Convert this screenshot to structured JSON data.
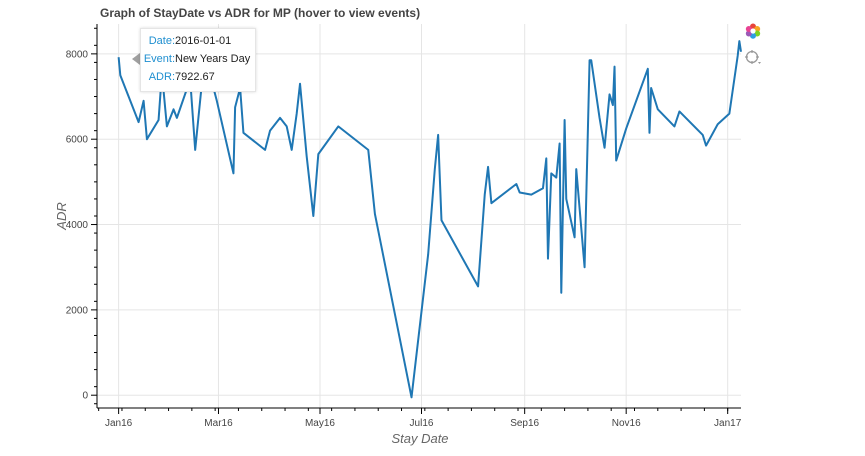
{
  "chart_data": {
    "type": "line",
    "title": "Graph of StayDate vs ADR for MP (hover to view events)",
    "xlabel": "Stay Date",
    "ylabel": "ADR",
    "x_ticks": [
      "Jan16",
      "Mar16",
      "May16",
      "Jul16",
      "Sep16",
      "Nov16",
      "Jan17"
    ],
    "y_ticks": [
      "0",
      "2000",
      "4000",
      "6000",
      "8000"
    ],
    "ylim": [
      -300,
      8700
    ],
    "xlim": [
      "2015-12-19",
      "2017-01-09"
    ],
    "grid": true,
    "series": [
      {
        "color": "#1f77b4",
        "points": [
          [
            "2016-01-01",
            7922.67
          ],
          [
            "2016-01-02",
            7500
          ],
          [
            "2016-01-13",
            6400
          ],
          [
            "2016-01-16",
            6900
          ],
          [
            "2016-01-18",
            6000
          ],
          [
            "2016-01-25",
            6450
          ],
          [
            "2016-01-27",
            7550
          ],
          [
            "2016-01-30",
            6300
          ],
          [
            "2016-02-03",
            6700
          ],
          [
            "2016-02-05",
            6500
          ],
          [
            "2016-02-13",
            7400
          ],
          [
            "2016-02-16",
            5750
          ],
          [
            "2016-02-20",
            7300
          ],
          [
            "2016-02-26",
            7350
          ],
          [
            "2016-02-29",
            6900
          ],
          [
            "2016-03-10",
            5200
          ],
          [
            "2016-03-11",
            6750
          ],
          [
            "2016-03-14",
            7200
          ],
          [
            "2016-03-16",
            6150
          ],
          [
            "2016-03-29",
            5750
          ],
          [
            "2016-04-01",
            6200
          ],
          [
            "2016-04-07",
            6500
          ],
          [
            "2016-04-11",
            6300
          ],
          [
            "2016-04-14",
            5750
          ],
          [
            "2016-04-17",
            6600
          ],
          [
            "2016-04-19",
            7300
          ],
          [
            "2016-04-23",
            5600
          ],
          [
            "2016-04-27",
            4200
          ],
          [
            "2016-04-30",
            5650
          ],
          [
            "2016-05-12",
            6300
          ],
          [
            "2016-05-30",
            5750
          ],
          [
            "2016-06-03",
            4250
          ],
          [
            "2016-06-25",
            -50
          ],
          [
            "2016-07-05",
            3300
          ],
          [
            "2016-07-09",
            5300
          ],
          [
            "2016-07-11",
            6100
          ],
          [
            "2016-07-13",
            4100
          ],
          [
            "2016-08-04",
            2550
          ],
          [
            "2016-08-08",
            4700
          ],
          [
            "2016-08-10",
            5350
          ],
          [
            "2016-08-12",
            4500
          ],
          [
            "2016-08-27",
            4950
          ],
          [
            "2016-08-29",
            4750
          ],
          [
            "2016-09-05",
            4700
          ],
          [
            "2016-09-12",
            4850
          ],
          [
            "2016-09-14",
            5550
          ],
          [
            "2016-09-15",
            3200
          ],
          [
            "2016-09-17",
            5200
          ],
          [
            "2016-09-20",
            5100
          ],
          [
            "2016-09-22",
            5900
          ],
          [
            "2016-09-23",
            2400
          ],
          [
            "2016-09-25",
            6450
          ],
          [
            "2016-09-26",
            4600
          ],
          [
            "2016-10-01",
            3700
          ],
          [
            "2016-10-02",
            5300
          ],
          [
            "2016-10-07",
            3000
          ],
          [
            "2016-10-10",
            7850
          ],
          [
            "2016-10-11",
            7850
          ],
          [
            "2016-10-16",
            6500
          ],
          [
            "2016-10-19",
            5800
          ],
          [
            "2016-10-22",
            7050
          ],
          [
            "2016-10-24",
            6800
          ],
          [
            "2016-10-25",
            7700
          ],
          [
            "2016-10-26",
            5500
          ],
          [
            "2016-11-01",
            6250
          ],
          [
            "2016-11-14",
            7650
          ],
          [
            "2016-11-15",
            6150
          ],
          [
            "2016-11-16",
            7200
          ],
          [
            "2016-11-20",
            6700
          ],
          [
            "2016-11-30",
            6300
          ],
          [
            "2016-12-03",
            6650
          ],
          [
            "2016-12-17",
            6100
          ],
          [
            "2016-12-19",
            5850
          ],
          [
            "2016-12-26",
            6350
          ],
          [
            "2017-01-02",
            6600
          ],
          [
            "2017-01-07",
            7950
          ],
          [
            "2017-01-08",
            8300
          ],
          [
            "2017-01-09",
            8050
          ]
        ]
      }
    ]
  },
  "tooltip": {
    "date_label": "Date:",
    "date_value": "2016-01-01",
    "event_label": "Event:",
    "event_value": "New Years Day",
    "adr_label": "ADR:",
    "adr_value": "7922.67"
  },
  "toolbar": {
    "logo_icon": "bokeh-logo-icon",
    "hover_icon": "hover-tool-icon"
  }
}
